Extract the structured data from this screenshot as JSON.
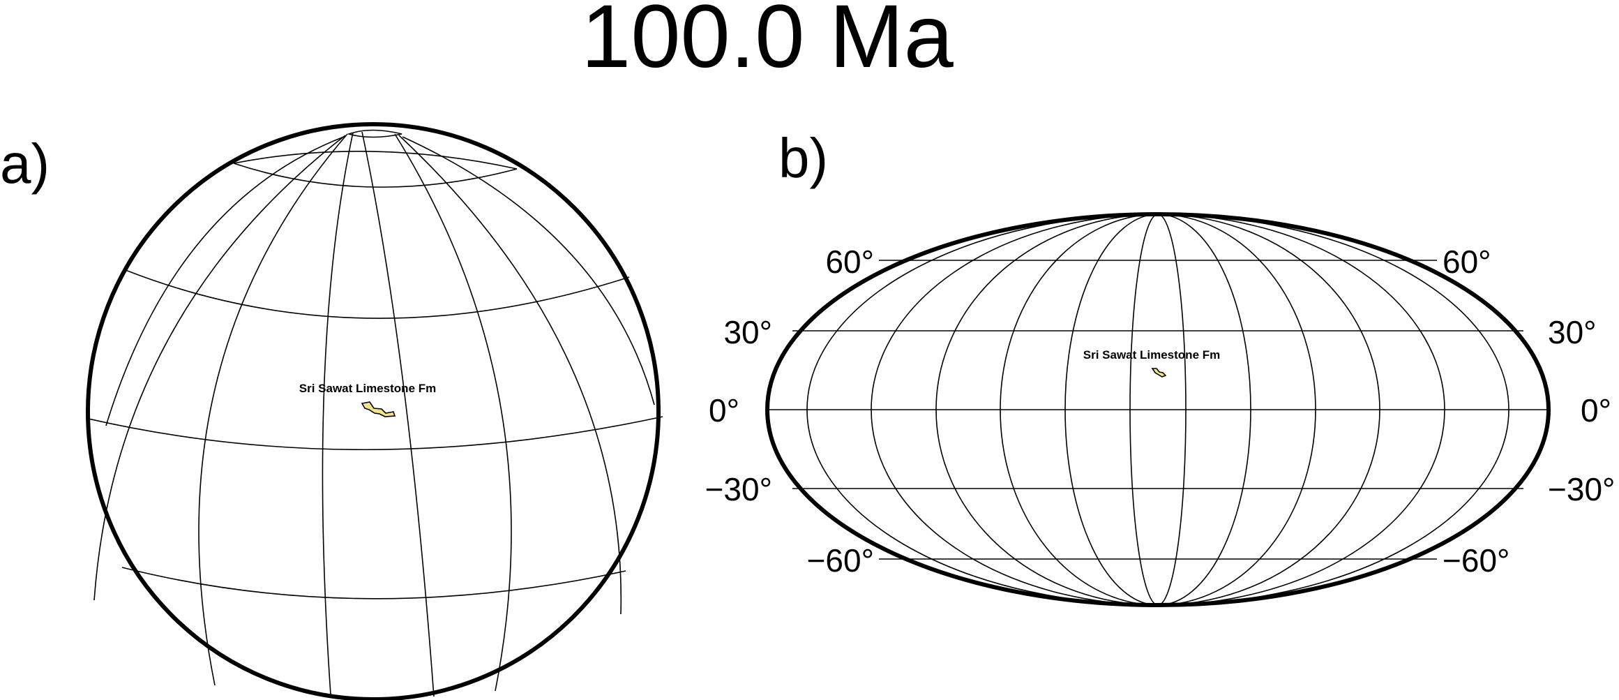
{
  "title": "100.0 Ma",
  "panels": {
    "a": {
      "label": "a)"
    },
    "b": {
      "label": "b)",
      "latitude_ticks": [
        "60°",
        "30°",
        "0°",
        "−30°",
        "−60°"
      ]
    }
  },
  "site": {
    "name": "Sri Sawat Limestone Fm"
  },
  "colors": {
    "lines": "#000000",
    "outcrop_fill": "#f3e58a",
    "background": "#ffffff"
  }
}
